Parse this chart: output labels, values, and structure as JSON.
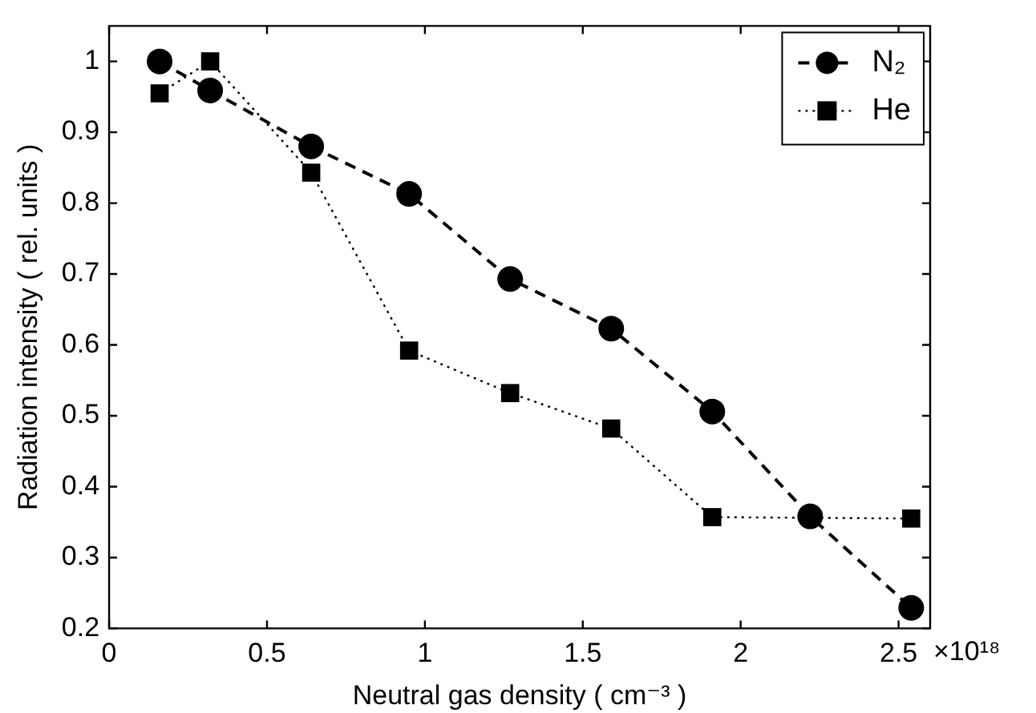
{
  "chart_data": {
    "type": "line",
    "xlabel": "Neutral gas density ( cm⁻³ )",
    "ylabel": "Radiation intensity ( rel. units )",
    "xlim": [
      0,
      2.6
    ],
    "xticks": [
      0,
      0.5,
      1,
      1.5,
      2,
      2.5
    ],
    "ylim": [
      0.2,
      1.05
    ],
    "yticks": [
      0.2,
      0.3,
      0.4,
      0.5,
      0.6,
      0.7,
      0.8,
      0.9,
      1
    ],
    "grid": false,
    "legend": "top right",
    "annotations": [
      "×10¹⁸"
    ],
    "series": [
      {
        "name": "N₂",
        "color": "#000000",
        "marker": "circle",
        "line_style": "dashed",
        "x": [
          0.16,
          0.32,
          0.64,
          0.95,
          1.27,
          1.59,
          1.91,
          2.22,
          2.54
        ],
        "values": [
          1.0,
          0.959,
          0.88,
          0.813,
          0.693,
          0.623,
          0.506,
          0.358,
          0.229
        ]
      },
      {
        "name": "He",
        "color": "#000000",
        "marker": "square",
        "line_style": "dotted",
        "x": [
          0.16,
          0.32,
          0.64,
          0.95,
          1.27,
          1.59,
          1.91,
          2.54
        ],
        "values": [
          0.955,
          1.0,
          0.843,
          0.592,
          0.532,
          0.482,
          0.357,
          0.355
        ]
      }
    ]
  }
}
